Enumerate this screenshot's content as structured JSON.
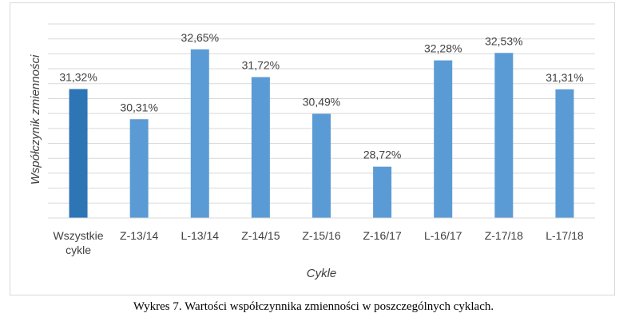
{
  "caption": "Wykres 7. Wartości współczynnika zmienności w poszczególnych cyklach.",
  "chart_data": {
    "type": "bar",
    "categories": [
      [
        "Wszystkie",
        "cykle"
      ],
      [
        "Z-13/14"
      ],
      [
        "L-13/14"
      ],
      [
        "Z-14/15"
      ],
      [
        "Z-15/16"
      ],
      [
        "Z-16/17"
      ],
      [
        "L-16/17"
      ],
      [
        "Z-17/18"
      ],
      [
        "L-17/18"
      ]
    ],
    "values": [
      31.32,
      30.31,
      32.65,
      31.72,
      30.49,
      28.72,
      32.28,
      32.53,
      31.31
    ],
    "data_labels": [
      "31,32%",
      "30,31%",
      "32,65%",
      "31,72%",
      "30,49%",
      "28,72%",
      "32,28%",
      "32,53%",
      "31,31%"
    ],
    "xlabel": "Cykle",
    "ylabel": "Współczynik zmienności",
    "ylim": [
      27,
      33.5
    ],
    "grid": "horizontal",
    "legend": "none",
    "colors": {
      "highlight_bar": "#2e75b6",
      "bar": "#5b9bd5",
      "gridline": "#d9d9d9",
      "text": "#404040"
    }
  }
}
